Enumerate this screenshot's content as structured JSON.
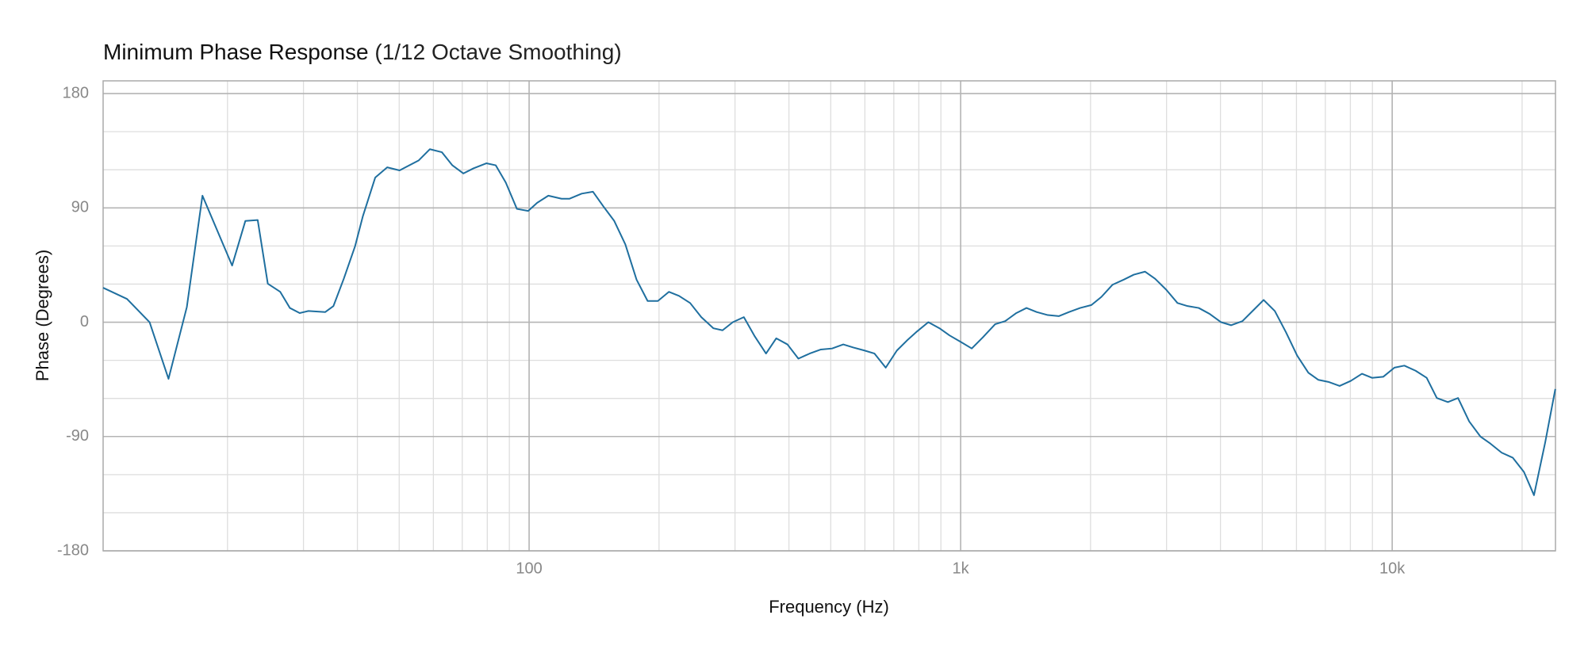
{
  "chart_data": {
    "type": "line",
    "title": "Minimum Phase Response",
    "subtitle": "(1/12 Octave Smoothing)",
    "x_label": "Frequency (Hz)",
    "y_label": "Phase (Degrees)",
    "xscale": "log",
    "grid": true,
    "color": "#1f6f9f",
    "xlim": [
      10.3,
      23900
    ],
    "ylim": [
      -180,
      190
    ],
    "xticks": [
      {
        "value": 100,
        "label": "100"
      },
      {
        "value": 1000,
        "label": "1k"
      },
      {
        "value": 10000,
        "label": "10k"
      }
    ],
    "xminor": [
      20,
      30,
      40,
      50,
      60,
      70,
      80,
      90,
      200,
      300,
      400,
      500,
      600,
      700,
      800,
      900,
      2000,
      3000,
      4000,
      5000,
      6000,
      7000,
      8000,
      9000,
      20000
    ],
    "yticks": [
      -180,
      -90,
      0,
      90,
      180
    ],
    "yminor": [
      -150,
      -120,
      -60,
      -30,
      30,
      60,
      120,
      150
    ],
    "x": [
      10.3,
      11.7,
      13.2,
      14.6,
      16.1,
      17.5,
      20.5,
      22,
      23.5,
      24.8,
      26.5,
      27.9,
      29.4,
      30.8,
      33.7,
      35.2,
      37.2,
      39.5,
      41.2,
      44,
      46.9,
      50.1,
      55.5,
      58.9,
      62.8,
      66.4,
      70.4,
      74.3,
      79.6,
      83.7,
      88.3,
      93.7,
      99.5,
      104.4,
      110.8,
      118.9,
      124.1,
      132.4,
      140.6,
      148.3,
      157.5,
      167.1,
      177.4,
      188.2,
      198.8,
      210.8,
      222.5,
      236.1,
      250.6,
      267.4,
      280.7,
      296.5,
      314.5,
      333.4,
      354,
      373.9,
      396.9,
      420.7,
      446.7,
      474.3,
      503.6,
      534.6,
      563.9,
      598.6,
      631.5,
      670.5,
      711.6,
      751.6,
      792.9,
      841.6,
      893.4,
      942.4,
      1005,
      1061,
      1126,
      1202,
      1268,
      1346,
      1421,
      1500,
      1592,
      1690,
      1783,
      1892,
      2009,
      2119,
      2249,
      2388,
      2519,
      2674,
      2822,
      2996,
      3180,
      3355,
      3562,
      3781,
      4013,
      4236,
      4497,
      4773,
      5036,
      5346,
      5675,
      6023,
      6394,
      6745,
      7116,
      7554,
      8018,
      8511,
      8980,
      9532,
      10120,
      10670,
      11330,
      12020,
      12690,
      13460,
      14210,
      15080,
      16010,
      16890,
      17930,
      19030,
      20200,
      21310,
      22620,
      23880
    ],
    "values": [
      27.1,
      18.3,
      0,
      -44.6,
      11.9,
      99.6,
      44.6,
      79.7,
      80.4,
      30.3,
      23.9,
      11.2,
      7.2,
      8.8,
      8,
      12.7,
      34.2,
      59.7,
      83.6,
      113.9,
      121.9,
      119.5,
      127.4,
      136.2,
      133.8,
      123.5,
      117.1,
      121.1,
      125.1,
      123.5,
      109.9,
      89.2,
      87.6,
      94,
      99.6,
      97.2,
      97.2,
      101.2,
      102.7,
      91.6,
      79.7,
      61.3,
      33.5,
      16.7,
      16.7,
      23.9,
      20.7,
      15.1,
      4,
      -4.8,
      -6.4,
      0,
      4,
      -11.2,
      -24.7,
      -12.7,
      -17.5,
      -28.7,
      -24.7,
      -21.5,
      -20.7,
      -17.5,
      -19.9,
      -22.3,
      -24.7,
      -35.8,
      -22.3,
      -14.3,
      -7.2,
      0,
      -4.8,
      -10.4,
      -15.9,
      -20.7,
      -11.9,
      -1.6,
      0.8,
      7.2,
      11.2,
      8,
      5.6,
      4.8,
      8,
      11.2,
      13.5,
      19.9,
      29.5,
      33.5,
      37.4,
      39.8,
      34.2,
      25.5,
      15.1,
      12.7,
      11.2,
      6.4,
      0,
      -2.4,
      0.8,
      9.6,
      17.5,
      8.8,
      -8,
      -26.3,
      -39.8,
      -45.4,
      -47,
      -50.2,
      -46.2,
      -40.6,
      -43.8,
      -43,
      -35.8,
      -34.2,
      -38.2,
      -43.8,
      -59.7,
      -62.9,
      -59.7,
      -78.1,
      -90,
      -95.6,
      -102.7,
      -106.7,
      -117.9,
      -136.2,
      -94.8,
      -52.6
    ]
  }
}
